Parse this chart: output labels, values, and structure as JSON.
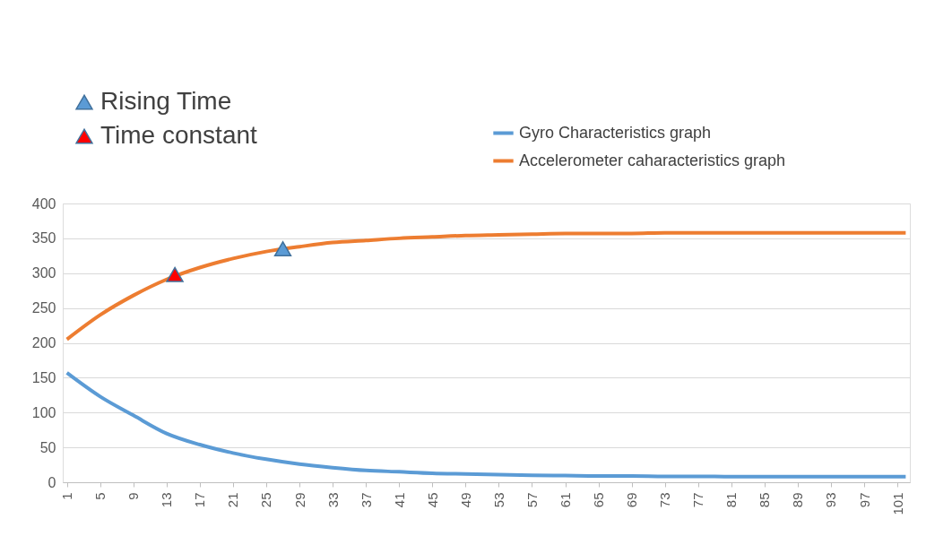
{
  "chart_data": {
    "type": "line",
    "xlim": [
      0.5,
      102.5
    ],
    "xticks": [
      1,
      5,
      9,
      13,
      17,
      21,
      25,
      29,
      33,
      37,
      41,
      45,
      49,
      53,
      57,
      61,
      65,
      69,
      73,
      77,
      81,
      85,
      89,
      93,
      97,
      101
    ],
    "ylim": [
      0,
      400
    ],
    "yticks": [
      0,
      50,
      100,
      150,
      200,
      250,
      300,
      350,
      400
    ],
    "grid": "y",
    "legend": "top",
    "line_style": "solid",
    "marker": "none",
    "x": [
      1,
      5,
      9,
      13,
      17,
      21,
      25,
      29,
      33,
      37,
      41,
      45,
      49,
      53,
      57,
      61,
      65,
      69,
      73,
      77,
      81,
      85,
      89,
      93,
      97,
      101,
      102
    ],
    "series": [
      {
        "name": "Gyro Characteristics graph",
        "color": "#5b9bd5",
        "values": [
          157,
          123,
          96,
          70,
          54,
          42,
          33,
          26,
          21,
          17,
          15,
          13,
          12,
          11,
          10,
          9.5,
          9,
          9,
          8.5,
          8.5,
          8,
          8,
          8,
          8,
          8,
          8,
          8
        ]
      },
      {
        "name": "Accelerometer caharacteristics graph",
        "color": "#ed7d31",
        "values": [
          205,
          240,
          268,
          291,
          308,
          321,
          331,
          338,
          344,
          347,
          350,
          352,
          354,
          355,
          356,
          357,
          357,
          357,
          358,
          358,
          358,
          358,
          358,
          358,
          358,
          358,
          358
        ]
      },
      {
        "name": "Rising Time",
        "type": "scatter",
        "marker": "triangle",
        "color": "#5b9bd5",
        "x": [
          27
        ],
        "values": [
          335
        ]
      },
      {
        "name": "Time constant",
        "type": "scatter",
        "marker": "triangle",
        "color": "#ff0000",
        "x": [
          14
        ],
        "values": [
          298
        ]
      }
    ]
  }
}
